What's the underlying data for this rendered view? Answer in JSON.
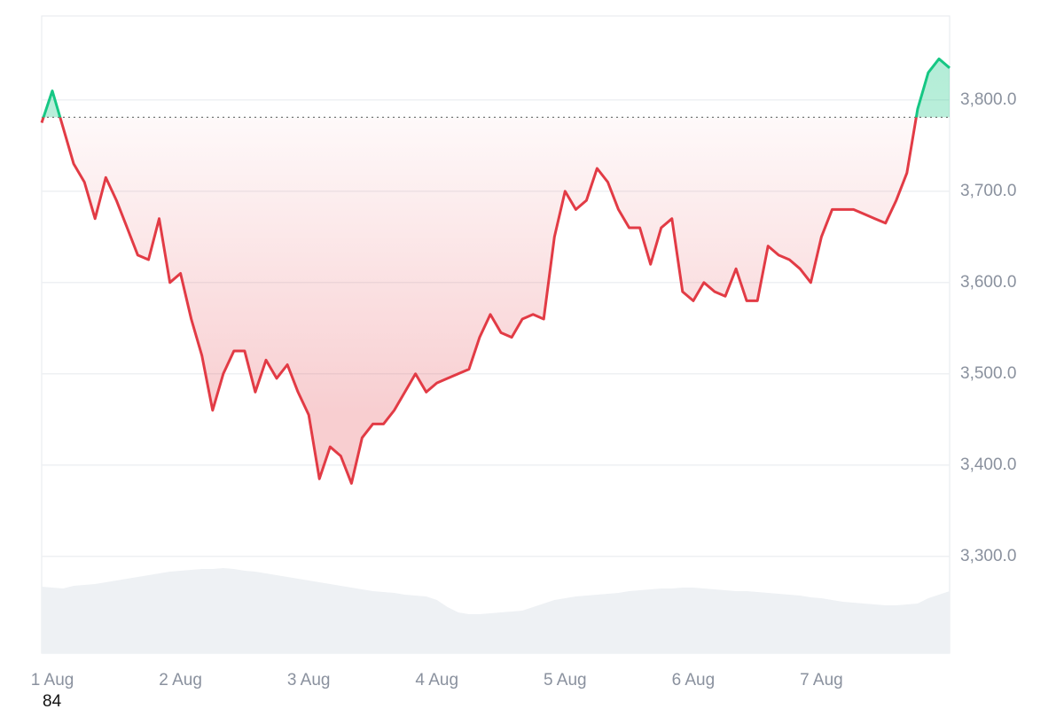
{
  "chart_data": {
    "type": "line",
    "categories": [
      null,
      "1 Aug",
      null,
      null,
      null,
      null,
      null,
      null,
      null,
      null,
      null,
      null,
      null,
      "2 Aug",
      null,
      null,
      null,
      null,
      null,
      null,
      null,
      null,
      null,
      null,
      null,
      "3 Aug",
      null,
      null,
      null,
      null,
      null,
      null,
      null,
      null,
      null,
      null,
      null,
      "4 Aug",
      null,
      null,
      null,
      null,
      null,
      null,
      null,
      null,
      null,
      null,
      null,
      "5 Aug",
      null,
      null,
      null,
      null,
      null,
      null,
      null,
      null,
      null,
      null,
      null,
      "6 Aug",
      null,
      null,
      null,
      null,
      null,
      null,
      null,
      null,
      null,
      null,
      null,
      "7 Aug",
      null,
      null,
      null,
      null,
      null,
      null,
      null,
      null,
      null,
      null,
      null,
      null
    ],
    "values": [
      3775,
      3810,
      3770,
      3730,
      3710,
      3670,
      3715,
      3690,
      3660,
      3630,
      3625,
      3670,
      3600,
      3610,
      3560,
      3520,
      3460,
      3500,
      3525,
      3525,
      3480,
      3515,
      3495,
      3510,
      3480,
      3455,
      3385,
      3420,
      3410,
      3380,
      3430,
      3445,
      3445,
      3460,
      3480,
      3500,
      3480,
      3490,
      3495,
      3500,
      3505,
      3540,
      3565,
      3545,
      3540,
      3560,
      3565,
      3560,
      3650,
      3700,
      3680,
      3690,
      3725,
      3710,
      3680,
      3660,
      3660,
      3620,
      3660,
      3670,
      3590,
      3580,
      3600,
      3590,
      3585,
      3615,
      3580,
      3580,
      3640,
      3630,
      3625,
      3615,
      3600,
      3650,
      3680,
      3680,
      3680,
      3675,
      3670,
      3665,
      3690,
      3720,
      3790,
      3830,
      3845,
      3835
    ],
    "volume": [
      75,
      74,
      73,
      76,
      77,
      78,
      80,
      82,
      84,
      86,
      88,
      90,
      92,
      93,
      94,
      95,
      95,
      96,
      95,
      93,
      92,
      90,
      88,
      86,
      84,
      82,
      80,
      78,
      76,
      74,
      72,
      70,
      69,
      68,
      66,
      65,
      64,
      60,
      52,
      46,
      44,
      44,
      45,
      46,
      47,
      48,
      52,
      56,
      60,
      62,
      64,
      65,
      66,
      67,
      68,
      70,
      71,
      72,
      73,
      73,
      74,
      74,
      73,
      72,
      71,
      70,
      70,
      69,
      68,
      67,
      66,
      65,
      63,
      62,
      60,
      58,
      57,
      56,
      55,
      54,
      54,
      55,
      56,
      62,
      66,
      70
    ],
    "baseline": 3781,
    "ylim": [
      3194,
      3892
    ],
    "yticks": [
      {
        "value": 3300,
        "label": "3,300.0"
      },
      {
        "value": 3400,
        "label": "3,400.0"
      },
      {
        "value": 3500,
        "label": "3,500.0"
      },
      {
        "value": 3600,
        "label": "3,600.0"
      },
      {
        "value": 3700,
        "label": "3,700.0"
      },
      {
        "value": 3800,
        "label": "3,800.0"
      }
    ],
    "grid": true,
    "color_down": "#e23b45",
    "color_up": "#16c784",
    "volume_color": "#eef1f4",
    "footer_text": "84"
  }
}
